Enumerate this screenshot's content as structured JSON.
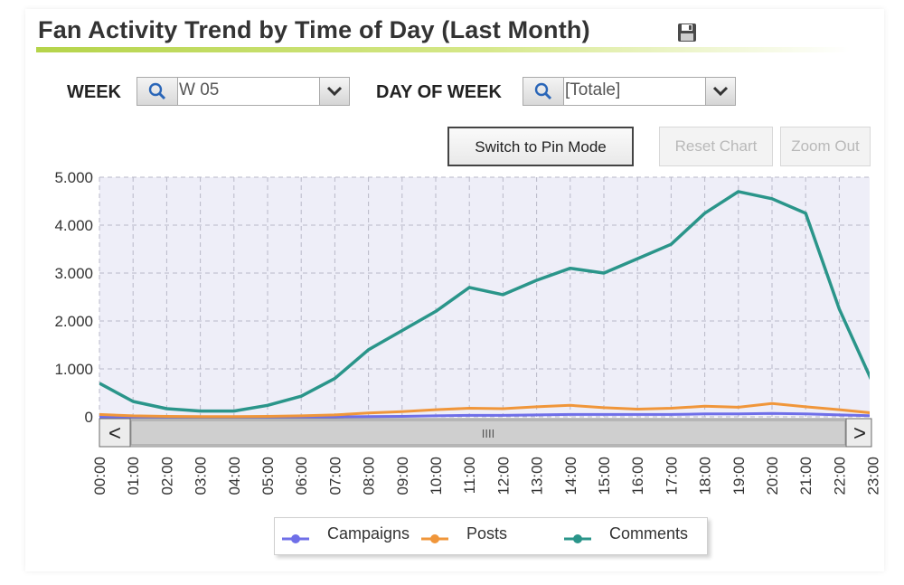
{
  "header": {
    "title": "Fan Activity Trend by Time of Day (Last Month)",
    "save_icon": "floppy-disk-icon"
  },
  "filters": {
    "week_label": "WEEK",
    "week_value": "W 05",
    "day_label": "DAY OF WEEK",
    "day_value": "[Totale]"
  },
  "toolbar": {
    "pin_mode_label": "Switch to Pin Mode",
    "reset_label": "Reset Chart",
    "zoom_out_label": "Zoom Out"
  },
  "scrollbar": {
    "thumb_grip": "IIII",
    "left_arrow": "<",
    "right_arrow": ">"
  },
  "colors": {
    "campaigns": "#6f6fe8",
    "posts": "#f0963a",
    "comments": "#2a958a",
    "plot_bg": "#eeeef8",
    "grid": "#b8b8c8"
  },
  "chart_data": {
    "type": "line",
    "categories": [
      "00:00",
      "01:00",
      "02:00",
      "03:00",
      "04:00",
      "05:00",
      "06:00",
      "07:00",
      "08:00",
      "09:00",
      "10:00",
      "11:00",
      "12:00",
      "13:00",
      "14:00",
      "15:00",
      "16:00",
      "17:00",
      "18:00",
      "19:00",
      "20:00",
      "21:00",
      "22:00",
      "23:00"
    ],
    "y_ticks": [
      "5.000",
      "4.000",
      "3.000",
      "2.000",
      "1.000",
      "0"
    ],
    "ylim": [
      0,
      5000
    ],
    "grid": true,
    "legend_position": "bottom",
    "series": [
      {
        "name": "Campaigns",
        "values": [
          0,
          0,
          0,
          0,
          0,
          0,
          0,
          0,
          5,
          10,
          20,
          30,
          30,
          40,
          50,
          50,
          50,
          50,
          60,
          60,
          70,
          60,
          40,
          20
        ]
      },
      {
        "name": "Posts",
        "values": [
          50,
          20,
          10,
          5,
          5,
          10,
          20,
          40,
          80,
          110,
          150,
          180,
          170,
          210,
          240,
          190,
          160,
          180,
          220,
          200,
          280,
          210,
          150,
          80
        ]
      },
      {
        "name": "Comments",
        "values": [
          700,
          320,
          170,
          120,
          120,
          240,
          430,
          800,
          1400,
          1800,
          2200,
          2700,
          2550,
          2850,
          3100,
          3000,
          3300,
          3600,
          4250,
          4700,
          4550,
          4250,
          2250,
          700
        ]
      }
    ]
  }
}
